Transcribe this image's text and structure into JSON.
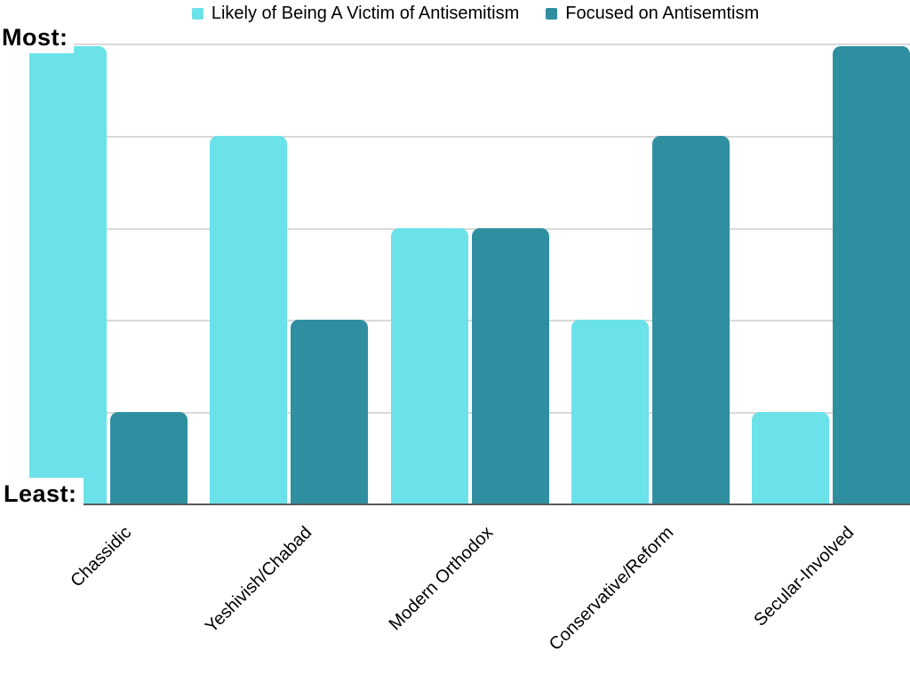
{
  "chart_data": {
    "type": "bar",
    "title": "",
    "categories": [
      "Chassidic",
      "Yeshivish/Chabad",
      "Modern Orthodox",
      "Conservative/Reform",
      "Secular-Involved"
    ],
    "series": [
      {
        "name": "Likely of Being A Victim of Antisemitism",
        "color": "#6BE2E9",
        "values": [
          5,
          4,
          3,
          2,
          1
        ]
      },
      {
        "name": "Focused on Antisemtism",
        "color": "#2F8FA1",
        "values": [
          1,
          2,
          3,
          4,
          5
        ]
      }
    ],
    "value_scale": "ordinal rank per gridline, 1 = Least, 5 = Most",
    "y_axis": {
      "top_label": "Most:",
      "bottom_label": "Least:",
      "min": 0,
      "max": 5,
      "gridline_count": 5
    },
    "xlabel": "",
    "ylabel": "",
    "grid": true,
    "legend_position": "top"
  },
  "styles": {
    "grid_color": "#d9d9d9",
    "axis_color": "#595959",
    "text_color": "#000000",
    "background": "#ffffff"
  }
}
